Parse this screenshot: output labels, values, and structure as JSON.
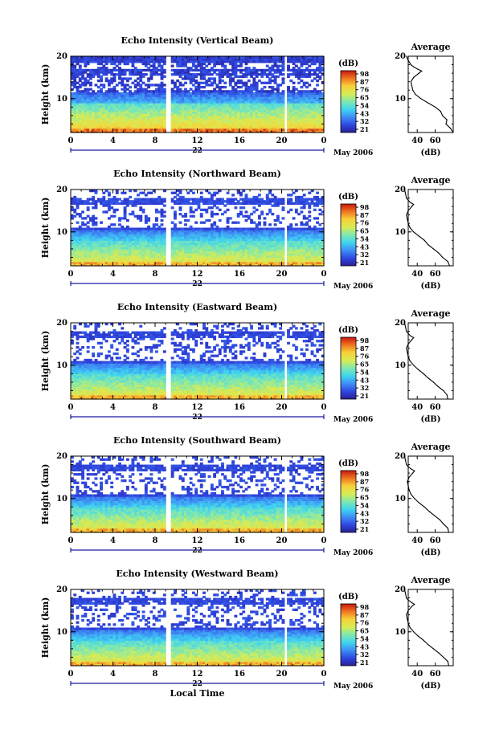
{
  "chart_data": [
    {
      "type": "heatmap",
      "title": "Echo Intensity (Vertical Beam)",
      "ylabel": "Height (km)",
      "x_ticks": [
        "0",
        "4",
        "8",
        "12",
        "16",
        "20",
        "0"
      ],
      "xlim": [
        0,
        24
      ],
      "ylim": [
        2,
        20
      ],
      "y_ticks": [
        "20",
        "10"
      ],
      "date_label": "22",
      "month_label": "May 2006",
      "colorbar_label": "(dB)",
      "colorbar_ticks": [
        "98",
        "87",
        "76",
        "65",
        "54",
        "43",
        "32",
        "21"
      ],
      "gaps": [
        [
          8.9,
          9.4
        ],
        [
          20.3,
          20.6
        ]
      ],
      "profile": {
        "title": "Average",
        "xlabel": "(dB)",
        "x_ticks": [
          "40",
          "60"
        ],
        "y_ticks": [
          "20",
          "10"
        ],
        "height_km": [
          2,
          3,
          4,
          5,
          6,
          7,
          8,
          9,
          10,
          11,
          12,
          13,
          14,
          15,
          16,
          16.5,
          17,
          17.5,
          18,
          19,
          20
        ],
        "db": [
          80,
          77,
          72,
          73,
          68,
          66,
          60,
          52,
          44,
          38,
          35,
          34,
          33,
          36,
          42,
          45,
          40,
          36,
          33,
          30,
          28
        ]
      }
    },
    {
      "type": "heatmap",
      "title": "Echo Intensity (Northward Beam)",
      "ylabel": "Height (km)",
      "x_ticks": [
        "0",
        "4",
        "8",
        "12",
        "16",
        "20",
        "0"
      ],
      "xlim": [
        0,
        24
      ],
      "ylim": [
        2,
        20
      ],
      "y_ticks": [
        "20",
        "10"
      ],
      "date_label": "22",
      "month_label": "May 2006",
      "colorbar_label": "(dB)",
      "colorbar_ticks": [
        "98",
        "87",
        "76",
        "65",
        "54",
        "43",
        "32",
        "21"
      ],
      "gaps": [
        [
          8.9,
          9.4
        ],
        [
          20.3,
          20.6
        ]
      ],
      "profile": {
        "title": "Average",
        "xlabel": "(dB)",
        "x_ticks": [
          "40",
          "60"
        ],
        "y_ticks": [
          "20",
          "10"
        ],
        "height_km": [
          2,
          3,
          4,
          5,
          6,
          7,
          8,
          9,
          10,
          11,
          12,
          13,
          14,
          15,
          16,
          16.5,
          17,
          17.5,
          18,
          19,
          20
        ],
        "db": [
          76,
          74,
          68,
          64,
          58,
          52,
          48,
          42,
          36,
          32,
          30,
          29,
          28,
          30,
          34,
          36,
          32,
          30,
          28,
          27,
          26
        ]
      }
    },
    {
      "type": "heatmap",
      "title": "Echo Intensity (Eastward Beam)",
      "ylabel": "Height (km)",
      "x_ticks": [
        "0",
        "4",
        "8",
        "12",
        "16",
        "20",
        "0"
      ],
      "xlim": [
        0,
        24
      ],
      "ylim": [
        2,
        20
      ],
      "y_ticks": [
        "20",
        "10"
      ],
      "date_label": "22",
      "month_label": "May 2006",
      "colorbar_label": "(dB)",
      "colorbar_ticks": [
        "98",
        "87",
        "76",
        "65",
        "54",
        "43",
        "32",
        "21"
      ],
      "gaps": [
        [
          8.9,
          9.4
        ],
        [
          20.3,
          20.6
        ]
      ],
      "profile": {
        "title": "Average",
        "xlabel": "(dB)",
        "x_ticks": [
          "40",
          "60"
        ],
        "y_ticks": [
          "20",
          "10"
        ],
        "height_km": [
          2,
          3,
          4,
          5,
          6,
          7,
          8,
          9,
          10,
          11,
          12,
          13,
          14,
          15,
          16,
          16.5,
          17,
          17.5,
          18,
          19,
          20
        ],
        "db": [
          74,
          73,
          69,
          63,
          58,
          52,
          47,
          41,
          36,
          32,
          30,
          29,
          28,
          30,
          34,
          36,
          32,
          30,
          28,
          27,
          26
        ]
      }
    },
    {
      "type": "heatmap",
      "title": "Echo Intensity (Southward Beam)",
      "ylabel": "Height (km)",
      "x_ticks": [
        "0",
        "4",
        "8",
        "12",
        "16",
        "20",
        "0"
      ],
      "xlim": [
        0,
        24
      ],
      "ylim": [
        2,
        20
      ],
      "y_ticks": [
        "20",
        "10"
      ],
      "date_label": "22",
      "month_label": "May 2006",
      "colorbar_label": "(dB)",
      "colorbar_ticks": [
        "98",
        "87",
        "76",
        "65",
        "54",
        "43",
        "32",
        "21"
      ],
      "gaps": [
        [
          8.9,
          9.4
        ],
        [
          20.3,
          20.6
        ]
      ],
      "profile": {
        "title": "Average",
        "xlabel": "(dB)",
        "x_ticks": [
          "40",
          "60"
        ],
        "y_ticks": [
          "20",
          "10"
        ],
        "height_km": [
          2,
          3,
          4,
          5,
          6,
          7,
          8,
          9,
          10,
          11,
          12,
          13,
          14,
          15,
          16,
          16.5,
          17,
          17.5,
          18,
          19,
          20
        ],
        "db": [
          75,
          74,
          69,
          65,
          59,
          53,
          48,
          42,
          37,
          33,
          31,
          30,
          29,
          31,
          35,
          37,
          33,
          30,
          28,
          27,
          26
        ]
      }
    },
    {
      "type": "heatmap",
      "title": "Echo Intensity (Westward Beam)",
      "ylabel": "Height (km)",
      "xlabel": "Local Time",
      "x_ticks": [
        "0",
        "4",
        "8",
        "12",
        "16",
        "20",
        "0"
      ],
      "xlim": [
        0,
        24
      ],
      "ylim": [
        2,
        20
      ],
      "y_ticks": [
        "20",
        "10"
      ],
      "date_label": "22",
      "month_label": "May 2006",
      "colorbar_label": "(dB)",
      "colorbar_ticks": [
        "98",
        "87",
        "76",
        "65",
        "54",
        "43",
        "32",
        "21"
      ],
      "gaps": [
        [
          8.9,
          9.4
        ],
        [
          20.3,
          20.6
        ]
      ],
      "profile": {
        "title": "Average",
        "xlabel": "(dB)",
        "x_ticks": [
          "40",
          "60"
        ],
        "y_ticks": [
          "20",
          "10"
        ],
        "height_km": [
          2,
          3,
          4,
          5,
          6,
          7,
          8,
          9,
          10,
          11,
          12,
          13,
          14,
          15,
          16,
          16.5,
          17,
          17.5,
          18,
          19,
          20
        ],
        "db": [
          75,
          74,
          69,
          64,
          58,
          52,
          47,
          41,
          36,
          32,
          30,
          29,
          28,
          30,
          34,
          37,
          33,
          30,
          28,
          27,
          26
        ]
      }
    }
  ]
}
